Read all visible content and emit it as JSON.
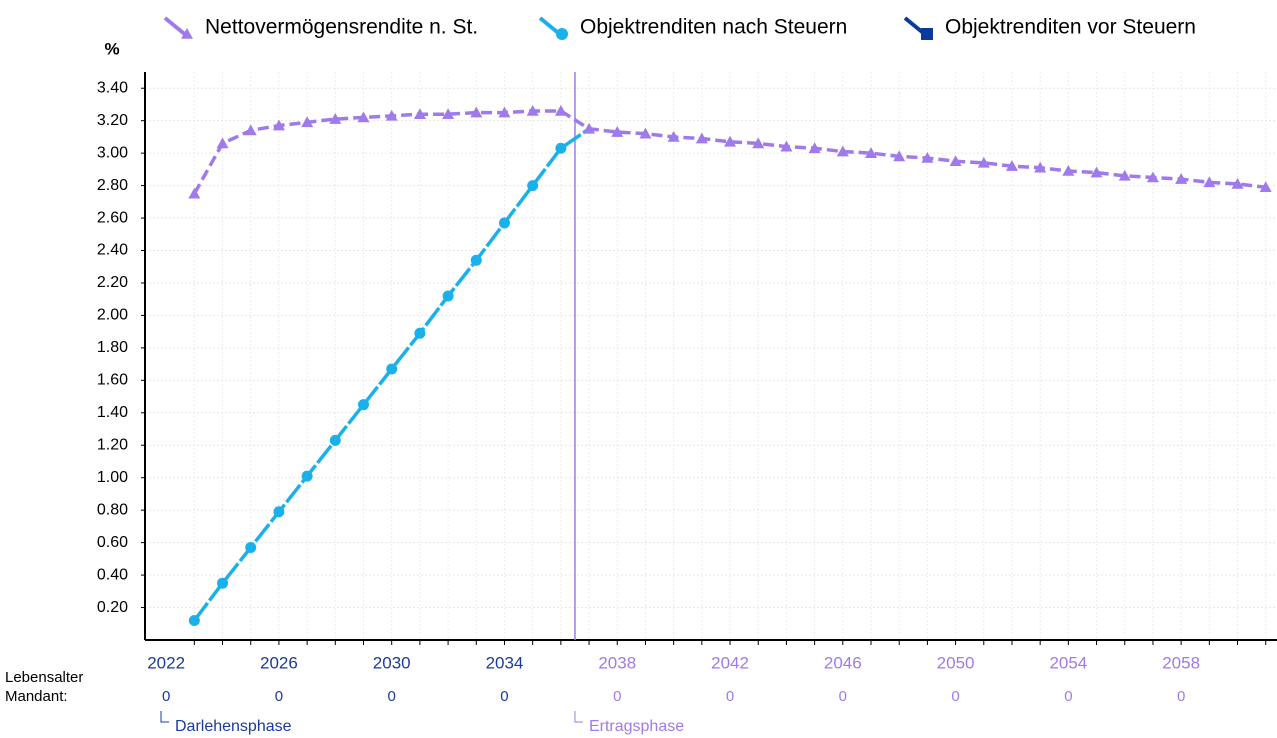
{
  "chart_data": {
    "type": "line",
    "y_unit": "%",
    "x": [
      2023,
      2024,
      2025,
      2026,
      2027,
      2028,
      2029,
      2030,
      2031,
      2032,
      2033,
      2034,
      2035,
      2036,
      2037,
      2038,
      2039,
      2040,
      2041,
      2042,
      2043,
      2044,
      2045,
      2046,
      2047,
      2048,
      2049,
      2050,
      2051,
      2052,
      2053,
      2054,
      2055,
      2056,
      2057,
      2058,
      2059,
      2060,
      2061
    ],
    "series": [
      {
        "name": "Nettovermögensrendite n. St.",
        "color": "#9f7aea",
        "marker": "triangle",
        "values": [
          2.75,
          3.06,
          3.14,
          3.17,
          3.19,
          3.21,
          3.22,
          3.23,
          3.24,
          3.24,
          3.25,
          3.25,
          3.26,
          3.26,
          3.15,
          3.13,
          3.12,
          3.1,
          3.09,
          3.07,
          3.06,
          3.04,
          3.03,
          3.01,
          3.0,
          2.98,
          2.97,
          2.95,
          2.94,
          2.92,
          2.91,
          2.89,
          2.88,
          2.86,
          2.85,
          2.84,
          2.82,
          2.81,
          2.79
        ]
      },
      {
        "name": "Objektrenditen nach Steuern",
        "color": "#1ab0ea",
        "marker": "circle",
        "values": [
          0.12,
          0.35,
          0.57,
          0.79,
          1.01,
          1.23,
          1.45,
          1.67,
          1.89,
          2.12,
          2.34,
          2.57,
          2.8,
          3.03,
          3.15,
          null,
          null,
          null,
          null,
          null,
          null,
          null,
          null,
          null,
          null,
          null,
          null,
          null,
          null,
          null,
          null,
          null,
          null,
          null,
          null,
          null,
          null,
          null,
          null
        ]
      },
      {
        "name": "Objektrenditen vor Steuern",
        "color": "#0a3a9e",
        "marker": "square",
        "values": [
          null,
          null,
          null,
          null,
          null,
          null,
          null,
          null,
          null,
          null,
          null,
          null,
          null,
          null,
          null,
          null,
          null,
          null,
          null,
          null,
          null,
          null,
          null,
          null,
          null,
          null,
          null,
          null,
          null,
          null,
          null,
          null,
          null,
          null,
          null,
          null,
          null,
          null,
          null
        ]
      }
    ],
    "xlim": [
      2021.25,
      2061.4
    ],
    "xticks": [
      2022,
      2026,
      2030,
      2034,
      2038,
      2042,
      2046,
      2050,
      2054,
      2058
    ],
    "ylim": [
      0,
      3.5
    ],
    "yticks": [
      {
        "value": 0.2,
        "label": "0.20"
      },
      {
        "value": 0.4,
        "label": "0.40"
      },
      {
        "value": 0.6,
        "label": "0.60"
      },
      {
        "value": 0.8,
        "label": "0.80"
      },
      {
        "value": 1.0,
        "label": "1.00"
      },
      {
        "value": 1.2,
        "label": "1.20"
      },
      {
        "value": 1.4,
        "label": "1.40"
      },
      {
        "value": 1.6,
        "label": "1.60"
      },
      {
        "value": 1.8,
        "label": "1.80"
      },
      {
        "value": 2.0,
        "label": "2.00"
      },
      {
        "value": 2.2,
        "label": "2.20"
      },
      {
        "value": 2.4,
        "label": "2.40"
      },
      {
        "value": 2.6,
        "label": "2.60"
      },
      {
        "value": 2.8,
        "label": "2.80"
      },
      {
        "value": 3.0,
        "label": "3.00"
      },
      {
        "value": 3.2,
        "label": "3.20"
      },
      {
        "value": 3.4,
        "label": "3.40"
      }
    ],
    "grid": true,
    "legend": "top",
    "phase_boundary": 2036.5,
    "phase_colors": [
      "#1a3a9e",
      "#9f7aea"
    ],
    "phases": [
      "Darlehensphase",
      "Ertragsphase"
    ],
    "age_row_label": [
      "Lebensalter",
      "Mandant:"
    ],
    "ages": [
      0,
      0,
      0,
      0,
      0,
      0,
      0,
      0,
      0,
      0
    ]
  }
}
